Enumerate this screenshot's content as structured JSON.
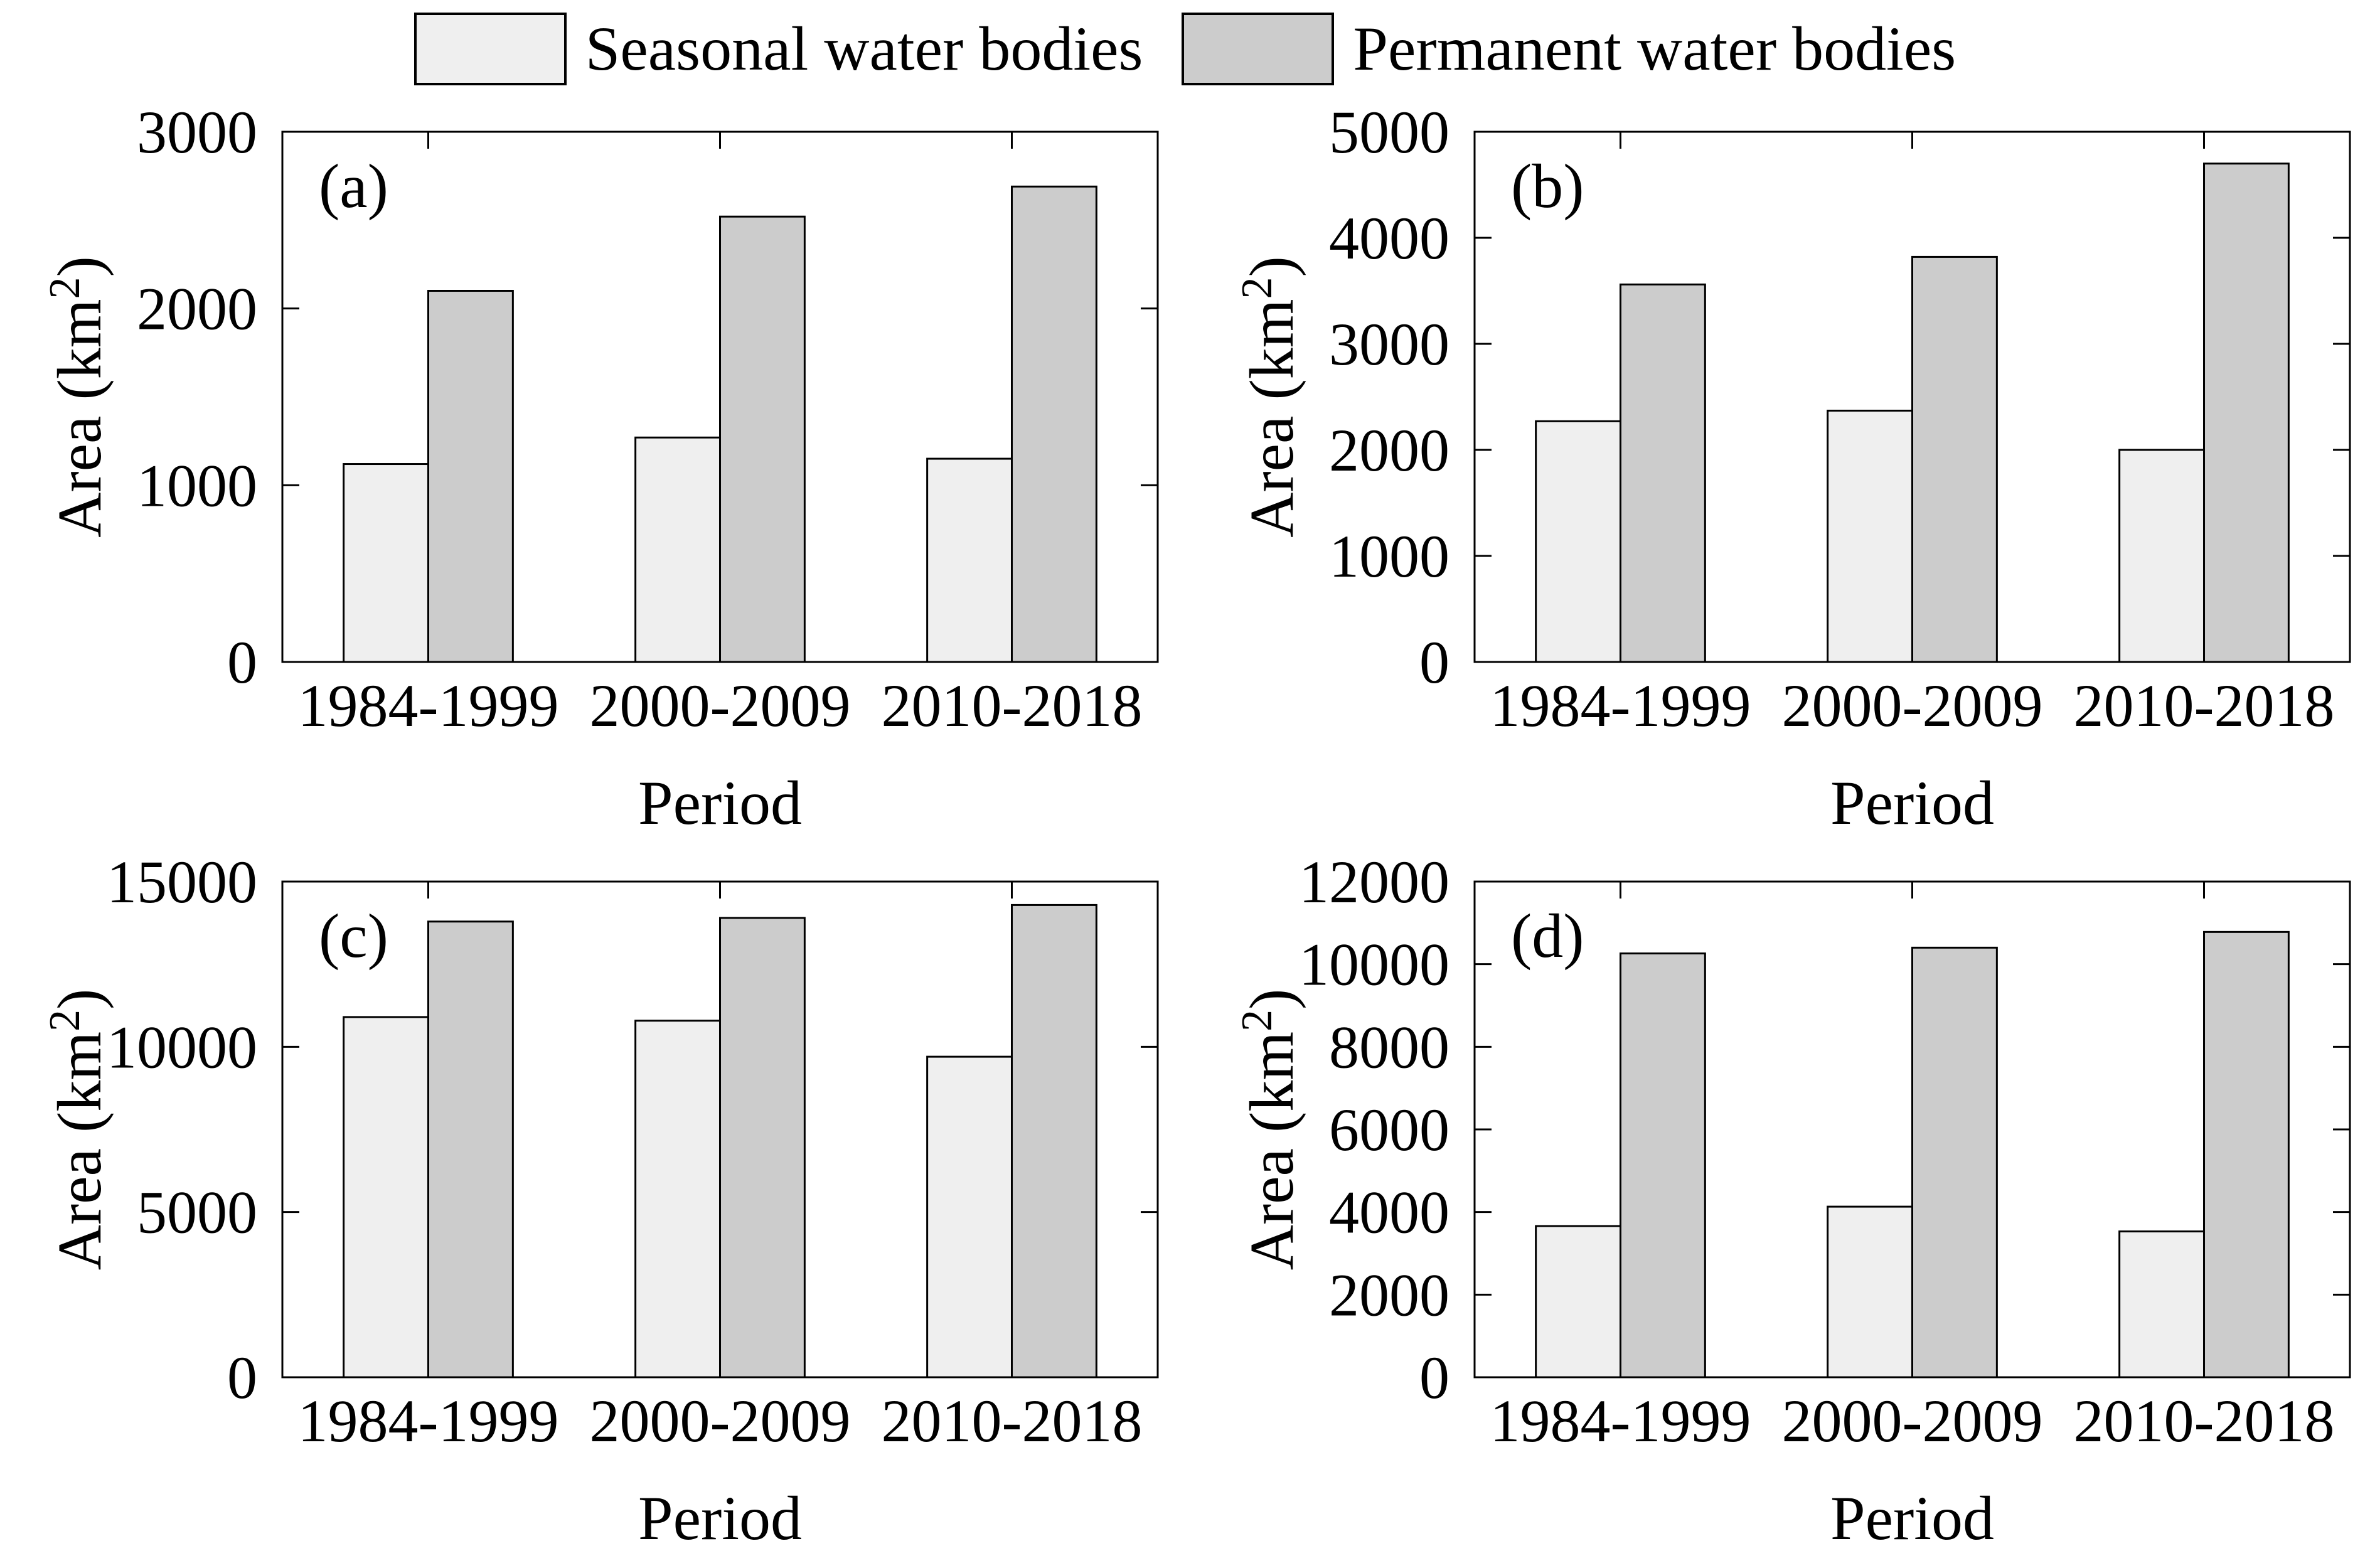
{
  "figure": {
    "legend": {
      "items": [
        {
          "label": "Seasonal water bodies",
          "color": "#efefef"
        },
        {
          "label": "Permanent water bodies",
          "color": "#cccccc"
        }
      ]
    },
    "xlabel": "Period",
    "ylabel": "Area (km²)",
    "categories": [
      "1984-1999",
      "2000-2009",
      "2010-2018"
    ],
    "colors": {
      "bar_edge": "#000000",
      "axis": "#000000",
      "background": "#ffffff"
    }
  },
  "chart_data": [
    {
      "type": "bar",
      "panel_label": "(a)",
      "categories": [
        "1984-1999",
        "2000-2009",
        "2010-2018"
      ],
      "xlabel": "Period",
      "ylabel": "Area (km²)",
      "ylim": [
        0,
        3000
      ],
      "yticks": [
        0,
        1000,
        2000,
        3000
      ],
      "grid": false,
      "legend_position": "shared-top-center",
      "series": [
        {
          "name": "Seasonal water bodies",
          "color": "#efefef",
          "values": [
            1120,
            1270,
            1150
          ]
        },
        {
          "name": "Permanent water bodies",
          "color": "#cccccc",
          "values": [
            2100,
            2520,
            2690
          ]
        }
      ]
    },
    {
      "type": "bar",
      "panel_label": "(b)",
      "categories": [
        "1984-1999",
        "2000-2009",
        "2010-2018"
      ],
      "xlabel": "Period",
      "ylabel": "Area (km²)",
      "ylim": [
        0,
        5000
      ],
      "yticks": [
        0,
        1000,
        2000,
        3000,
        4000,
        5000
      ],
      "grid": false,
      "legend_position": "shared-top-center",
      "series": [
        {
          "name": "Seasonal water bodies",
          "color": "#efefef",
          "values": [
            2270,
            2370,
            2000
          ]
        },
        {
          "name": "Permanent water bodies",
          "color": "#cccccc",
          "values": [
            3560,
            3820,
            4700
          ]
        }
      ]
    },
    {
      "type": "bar",
      "panel_label": "(c)",
      "categories": [
        "1984-1999",
        "2000-2009",
        "2010-2018"
      ],
      "xlabel": "Period",
      "ylabel": "Area (km²)",
      "ylim": [
        0,
        15000
      ],
      "yticks": [
        0,
        5000,
        10000,
        15000
      ],
      "grid": false,
      "legend_position": "shared-top-center",
      "series": [
        {
          "name": "Seasonal water bodies",
          "color": "#efefef",
          "values": [
            10900,
            10790,
            9700
          ]
        },
        {
          "name": "Permanent water bodies",
          "color": "#cccccc",
          "values": [
            13790,
            13900,
            14290
          ]
        }
      ]
    },
    {
      "type": "bar",
      "panel_label": "(d)",
      "categories": [
        "1984-1999",
        "2000-2009",
        "2010-2018"
      ],
      "xlabel": "Period",
      "ylabel": "Area (km²)",
      "ylim": [
        0,
        12000
      ],
      "yticks": [
        0,
        2000,
        4000,
        6000,
        8000,
        10000,
        12000
      ],
      "grid": false,
      "legend_position": "shared-top-center",
      "series": [
        {
          "name": "Seasonal water bodies",
          "color": "#efefef",
          "values": [
            3660,
            4130,
            3530
          ]
        },
        {
          "name": "Permanent water bodies",
          "color": "#cccccc",
          "values": [
            10260,
            10400,
            10780
          ]
        }
      ]
    }
  ]
}
